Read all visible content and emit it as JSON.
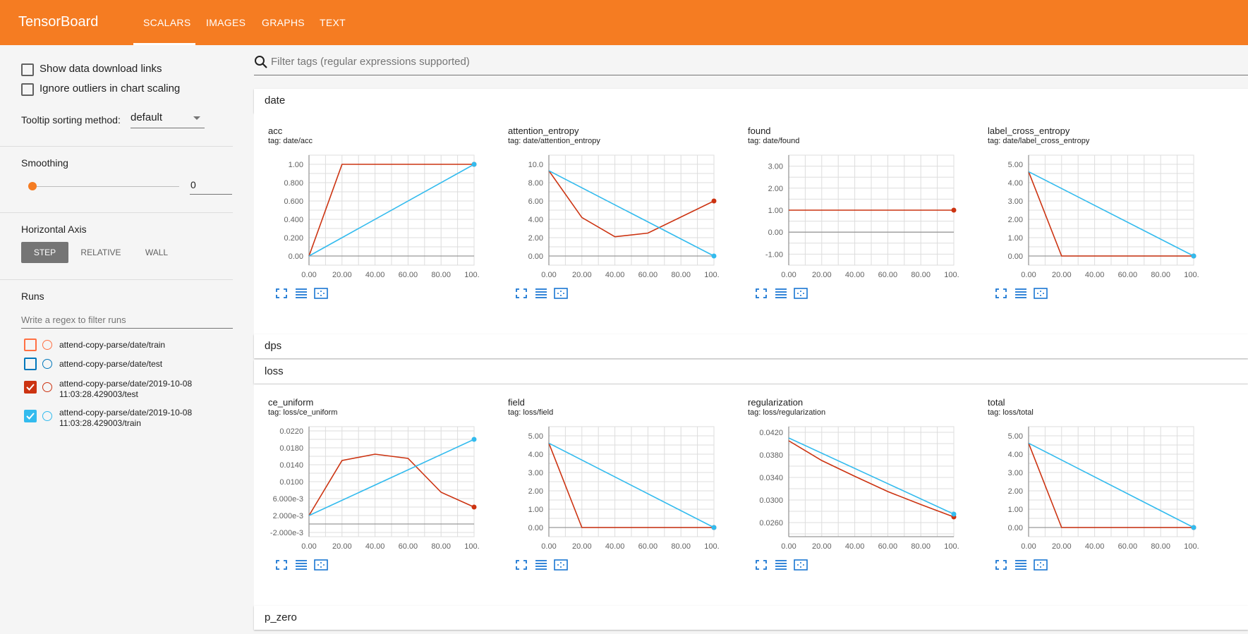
{
  "app": {
    "title": "TensorBoard",
    "tabs": [
      "SCALARS",
      "IMAGES",
      "GRAPHS",
      "TEXT"
    ]
  },
  "colors": {
    "accent": "#f57c22",
    "train_date": "#ff7043",
    "test_date": "#0077bb",
    "test_run": "#cc3311",
    "train_run": "#33bbee"
  },
  "sidebar": {
    "show_download": "Show data download links",
    "ignore_outliers": "Ignore outliers in chart scaling",
    "tooltip_label": "Tooltip sorting method:",
    "tooltip_value": "default",
    "smoothing_label": "Smoothing",
    "smoothing_value": "0",
    "smoothing_fraction": 0,
    "haxis_label": "Horizontal Axis",
    "haxis_options": [
      "STEP",
      "RELATIVE",
      "WALL"
    ],
    "runs_label": "Runs",
    "runs_placeholder": "Write a regex to filter runs",
    "runs": [
      {
        "name": "attend-copy-parse/date/train",
        "checked": false,
        "color": "#ff7043"
      },
      {
        "name": "attend-copy-parse/date/test",
        "checked": false,
        "color": "#0077bb"
      },
      {
        "name": "attend-copy-parse/date/2019-10-08\n11:03:28.429003/test",
        "checked": true,
        "color": "#cc3311"
      },
      {
        "name": "attend-copy-parse/date/2019-10-08\n11:03:28.429003/train",
        "checked": true,
        "color": "#33bbee"
      }
    ]
  },
  "main": {
    "filter_placeholder": "Filter tags (regular expressions supported)",
    "categories": {
      "date": "date",
      "dps": "dps",
      "loss": "loss",
      "p_zero": "p_zero"
    }
  },
  "chart_data": [
    {
      "type": "line",
      "title": "acc",
      "tag": "tag: date/acc",
      "xlim": [
        0,
        100
      ],
      "ylim": [
        -0.1,
        1.1
      ],
      "yticks": [
        0,
        0.2,
        0.4,
        0.6,
        0.8,
        1.0
      ],
      "ytick_labels": [
        "0.00",
        "0.200",
        "0.400",
        "0.600",
        "0.800",
        "1.00"
      ],
      "series": [
        {
          "name": "test",
          "color": "#cc3311",
          "x": [
            0,
            20,
            100
          ],
          "y": [
            0,
            1,
            1
          ]
        },
        {
          "name": "train",
          "color": "#33bbee",
          "x": [
            0,
            100
          ],
          "y": [
            0,
            1
          ]
        }
      ]
    },
    {
      "type": "line",
      "title": "attention_entropy",
      "tag": "tag: date/attention_entropy",
      "xlim": [
        0,
        100
      ],
      "ylim": [
        -1,
        11
      ],
      "yticks": [
        0,
        2,
        4,
        6,
        8,
        10
      ],
      "ytick_labels": [
        "0.00",
        "2.00",
        "4.00",
        "6.00",
        "8.00",
        "10.0"
      ],
      "series": [
        {
          "name": "test",
          "color": "#cc3311",
          "x": [
            0,
            20,
            40,
            60,
            100
          ],
          "y": [
            9.3,
            4.2,
            2.1,
            2.5,
            6
          ]
        },
        {
          "name": "train",
          "color": "#33bbee",
          "x": [
            0,
            100
          ],
          "y": [
            9.3,
            0
          ]
        }
      ]
    },
    {
      "type": "line",
      "title": "found",
      "tag": "tag: date/found",
      "xlim": [
        0,
        100
      ],
      "ylim": [
        -1.5,
        3.5
      ],
      "yticks": [
        -1,
        0,
        1,
        2,
        3
      ],
      "ytick_labels": [
        "-1.00",
        "0.00",
        "1.00",
        "2.00",
        "3.00"
      ],
      "series": [
        {
          "name": "test",
          "color": "#cc3311",
          "x": [
            0,
            100
          ],
          "y": [
            1,
            1
          ]
        }
      ]
    },
    {
      "type": "line",
      "title": "label_cross_entropy",
      "tag": "tag: date/label_cross_entropy",
      "xlim": [
        0,
        100
      ],
      "ylim": [
        -0.5,
        5.5
      ],
      "yticks": [
        0,
        1,
        2,
        3,
        4,
        5
      ],
      "ytick_labels": [
        "0.00",
        "1.00",
        "2.00",
        "3.00",
        "4.00",
        "5.00"
      ],
      "series": [
        {
          "name": "test",
          "color": "#cc3311",
          "x": [
            0,
            20,
            100
          ],
          "y": [
            4.6,
            0,
            0
          ]
        },
        {
          "name": "train",
          "color": "#33bbee",
          "x": [
            0,
            100
          ],
          "y": [
            4.6,
            0
          ]
        }
      ]
    },
    {
      "type": "line",
      "title": "ce_uniform",
      "tag": "tag: loss/ce_uniform",
      "xlim": [
        0,
        100
      ],
      "ylim": [
        -0.003,
        0.023
      ],
      "yticks": [
        -0.002,
        0.002,
        0.006,
        0.01,
        0.014,
        0.018,
        0.022
      ],
      "ytick_labels": [
        "-2.000e-3",
        "2.000e-3",
        "6.000e-3",
        "0.0100",
        "0.0140",
        "0.0180",
        "0.0220"
      ],
      "series": [
        {
          "name": "test",
          "color": "#cc3311",
          "x": [
            0,
            20,
            40,
            60,
            80,
            100
          ],
          "y": [
            0.002,
            0.015,
            0.0165,
            0.0155,
            0.0075,
            0.004
          ]
        },
        {
          "name": "train",
          "color": "#33bbee",
          "x": [
            0,
            100
          ],
          "y": [
            0.002,
            0.02
          ]
        }
      ]
    },
    {
      "type": "line",
      "title": "field",
      "tag": "tag: loss/field",
      "xlim": [
        0,
        100
      ],
      "ylim": [
        -0.5,
        5.5
      ],
      "yticks": [
        0,
        1,
        2,
        3,
        4,
        5
      ],
      "ytick_labels": [
        "0.00",
        "1.00",
        "2.00",
        "3.00",
        "4.00",
        "5.00"
      ],
      "series": [
        {
          "name": "test",
          "color": "#cc3311",
          "x": [
            0,
            20,
            100
          ],
          "y": [
            4.6,
            0,
            0
          ]
        },
        {
          "name": "train",
          "color": "#33bbee",
          "x": [
            0,
            100
          ],
          "y": [
            4.6,
            0
          ]
        }
      ]
    },
    {
      "type": "line",
      "title": "regularization",
      "tag": "tag: loss/regularization",
      "xlim": [
        0,
        100
      ],
      "ylim": [
        0.0235,
        0.043
      ],
      "yticks": [
        0.026,
        0.03,
        0.034,
        0.038,
        0.042
      ],
      "ytick_labels": [
        "0.0260",
        "0.0300",
        "0.0340",
        "0.0380",
        "0.0420"
      ],
      "series": [
        {
          "name": "test",
          "color": "#cc3311",
          "x": [
            0,
            20,
            40,
            60,
            80,
            100
          ],
          "y": [
            0.0405,
            0.037,
            0.0342,
            0.0315,
            0.0292,
            0.027
          ]
        },
        {
          "name": "train",
          "color": "#33bbee",
          "x": [
            0,
            100
          ],
          "y": [
            0.041,
            0.0275
          ]
        }
      ]
    },
    {
      "type": "line",
      "title": "total",
      "tag": "tag: loss/total",
      "xlim": [
        0,
        100
      ],
      "ylim": [
        -0.5,
        5.5
      ],
      "yticks": [
        0,
        1,
        2,
        3,
        4,
        5
      ],
      "ytick_labels": [
        "0.00",
        "1.00",
        "2.00",
        "3.00",
        "4.00",
        "5.00"
      ],
      "series": [
        {
          "name": "test",
          "color": "#cc3311",
          "x": [
            0,
            20,
            100
          ],
          "y": [
            4.6,
            0,
            0
          ]
        },
        {
          "name": "train",
          "color": "#33bbee",
          "x": [
            0,
            100
          ],
          "y": [
            4.6,
            0
          ]
        }
      ]
    }
  ],
  "xtick_labels": [
    "0.00",
    "20.00",
    "40.00",
    "60.00",
    "80.00",
    "100.0"
  ]
}
